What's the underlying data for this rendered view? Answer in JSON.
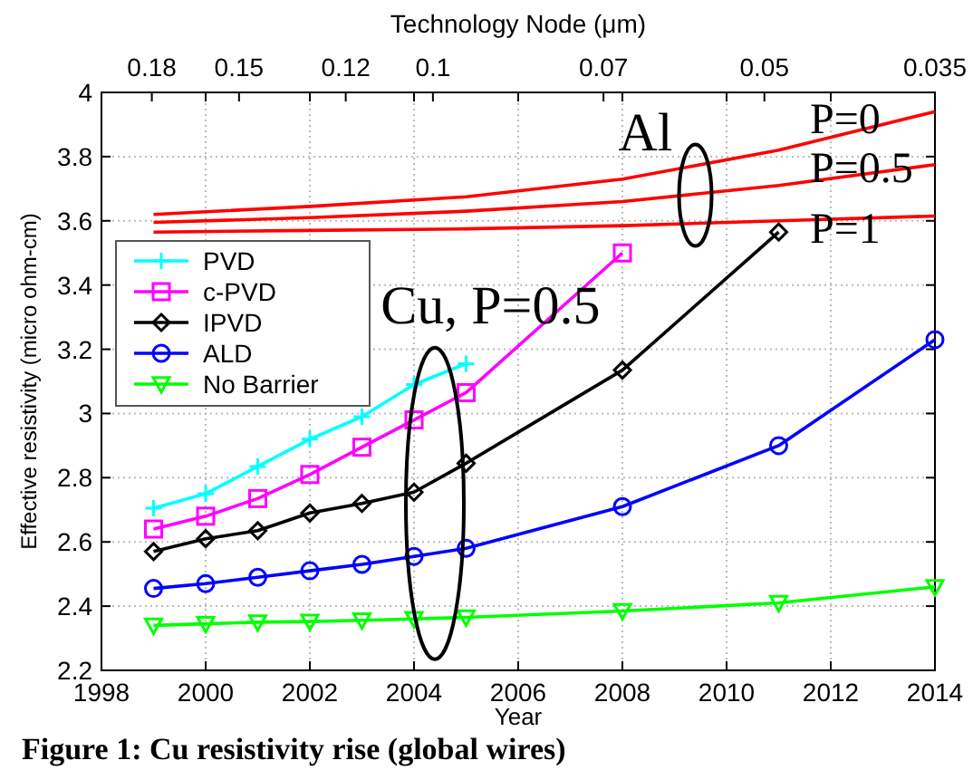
{
  "chart_data": {
    "type": "line",
    "xlabel": "Year",
    "ylabel": "Effective resistivity (micro ohm-cm)",
    "x2label": "Technology Node (μm)",
    "xlim": [
      1998,
      2014
    ],
    "xticks": [
      1998,
      2000,
      2002,
      2004,
      2006,
      2008,
      2010,
      2012,
      2014
    ],
    "x2lim": [
      0.2,
      0.035
    ],
    "x2ticks": [
      0.18,
      0.15,
      0.12,
      0.1,
      0.07,
      0.05,
      0.035
    ],
    "log": "x2",
    "ylim": [
      2.2,
      4
    ],
    "yticks": [
      2.2,
      2.4,
      2.6,
      2.8,
      3,
      3.2,
      3.4,
      3.6,
      3.8,
      4
    ],
    "grid": true,
    "legend": "top left",
    "series": [
      {
        "color": "#ff0000",
        "marker": "none",
        "x": [
          1999,
          2002,
          2005,
          2008,
          2011,
          2014
        ],
        "values": [
          3.62,
          3.645,
          3.675,
          3.73,
          3.82,
          3.94
        ]
      },
      {
        "color": "#ff0000",
        "marker": "none",
        "x": [
          1999,
          2002,
          2005,
          2008,
          2011,
          2014
        ],
        "values": [
          3.595,
          3.61,
          3.63,
          3.66,
          3.71,
          3.775
        ]
      },
      {
        "color": "#ff0000",
        "marker": "none",
        "x": [
          1999,
          2002,
          2005,
          2008,
          2011,
          2014
        ],
        "values": [
          3.565,
          3.57,
          3.575,
          3.585,
          3.6,
          3.615
        ]
      },
      {
        "name": "PVD",
        "color": "#00ffff",
        "marker": "cross",
        "x": [
          1999,
          2000,
          2001,
          2002,
          2003,
          2004,
          2005
        ],
        "values": [
          2.705,
          2.75,
          2.835,
          2.92,
          2.99,
          3.09,
          3.155
        ]
      },
      {
        "name": "c-PVD",
        "color": "#ff00ff",
        "marker": "square",
        "x": [
          1999,
          2000,
          2001,
          2002,
          2003,
          2004,
          2005,
          2008
        ],
        "values": [
          2.64,
          2.68,
          2.735,
          2.81,
          2.895,
          2.98,
          3.065,
          3.5
        ]
      },
      {
        "name": "IPVD",
        "color": "#000000",
        "marker": "diamond",
        "x": [
          1999,
          2000,
          2001,
          2002,
          2003,
          2004,
          2005,
          2008,
          2011
        ],
        "values": [
          2.57,
          2.61,
          2.635,
          2.69,
          2.72,
          2.755,
          2.845,
          3.135,
          3.565
        ]
      },
      {
        "name": "ALD",
        "color": "#0000ff",
        "marker": "circle",
        "x": [
          1999,
          2000,
          2001,
          2002,
          2003,
          2004,
          2005,
          2008,
          2011,
          2014
        ],
        "values": [
          2.455,
          2.47,
          2.49,
          2.51,
          2.53,
          2.555,
          2.58,
          2.71,
          2.9,
          3.23
        ]
      },
      {
        "name": "No Barrier",
        "color": "#00ff00",
        "marker": "triangle",
        "x": [
          1999,
          2000,
          2001,
          2002,
          2003,
          2004,
          2005,
          2008,
          2011,
          2014
        ],
        "values": [
          2.34,
          2.345,
          2.35,
          2.352,
          2.356,
          2.36,
          2.365,
          2.385,
          2.41,
          2.46
        ]
      }
    ],
    "annotations": [
      "Al",
      "P=0",
      "P=0.5",
      "P=1",
      "Cu, P=0.5",
      "Figure 1: Cu resistivity rise (global wires)"
    ]
  }
}
